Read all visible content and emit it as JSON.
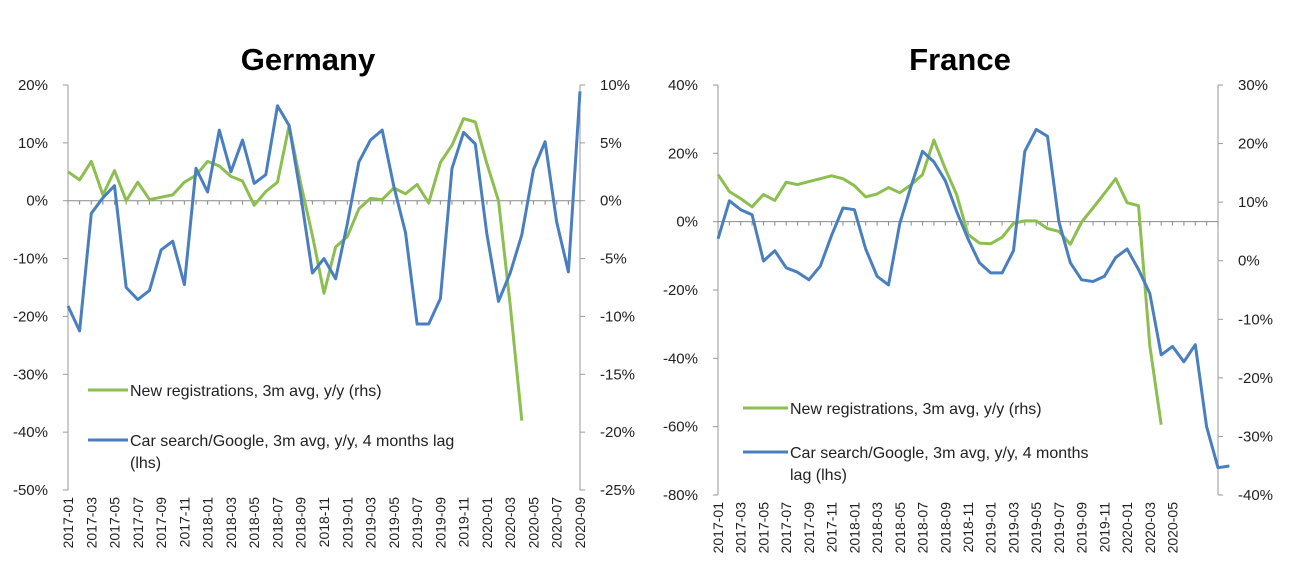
{
  "colors": {
    "green": "#8cbf4f",
    "blue": "#4a7fbf",
    "axis": "#9a9a9a",
    "zero": "#8a8a8a"
  },
  "charts": [
    {
      "title": "Germany",
      "left_ticks": [
        "20%",
        "10%",
        "0%",
        "-10%",
        "-20%",
        "-30%",
        "-40%",
        "-50%"
      ],
      "right_ticks": [
        "10%",
        "5%",
        "0%",
        "-5%",
        "-10%",
        "-15%",
        "-20%",
        "-25%"
      ],
      "legend": [
        "New registrations, 3m avg, y/y (rhs)",
        "Car search/Google, 3m avg, y/y, 4 months lag (lhs)"
      ]
    },
    {
      "title": "France",
      "left_ticks": [
        "40%",
        "20%",
        "0%",
        "-20%",
        "-40%",
        "-60%",
        "-80%"
      ],
      "right_ticks": [
        "30%",
        "20%",
        "10%",
        "0%",
        "-10%",
        "-20%",
        "-30%",
        "-40%"
      ],
      "legend": [
        "New registrations, 3m avg, y/y (rhs)",
        "Car search/Google, 3m avg, y/y, 4 months lag (lhs)"
      ]
    }
  ],
  "chart_data": [
    {
      "type": "line",
      "title": "Germany",
      "x_start": "2017-01",
      "x_end": "2020-09",
      "x_tick_labels": [
        "2017-01",
        "2017-03",
        "2017-05",
        "2017-07",
        "2017-09",
        "2017-11",
        "2018-01",
        "2018-03",
        "2018-05",
        "2018-07",
        "2018-09",
        "2018-11",
        "2019-01",
        "2019-03",
        "2019-05",
        "2019-07",
        "2019-09",
        "2019-11",
        "2020-01",
        "2020-03",
        "2020-05",
        "2020-07",
        "2020-09"
      ],
      "y_left_lim": [
        -50,
        20
      ],
      "y_right_lim": [
        -25,
        10
      ],
      "series": [
        {
          "name": "New registrations, 3m avg, y/y (rhs)",
          "axis": "right",
          "values": [
            2.5,
            1.8,
            3.4,
            0.5,
            2.6,
            0.0,
            1.6,
            0.1,
            0.3,
            0.5,
            1.6,
            2.2,
            3.4,
            3.0,
            2.1,
            1.7,
            -0.4,
            0.8,
            1.6,
            6.5,
            1.5,
            -3.0,
            -8.0,
            -4.0,
            -3.1,
            -0.7,
            0.2,
            0.1,
            1.1,
            0.6,
            1.4,
            -0.2,
            3.3,
            4.8,
            7.1,
            6.8,
            3.2,
            0.0,
            -9.0,
            -19.0
          ]
        },
        {
          "name": "Car search/Google, 3m avg, y/y, 4 months lag (lhs)",
          "axis": "left",
          "values": [
            -18.2,
            -22.5,
            -2.2,
            0.5,
            2.6,
            -15.0,
            -17.1,
            -15.5,
            -8.5,
            -7.0,
            -14.5,
            5.6,
            1.5,
            12.2,
            5.0,
            10.5,
            3.0,
            4.5,
            16.4,
            13.0,
            1.0,
            -12.5,
            -10.0,
            -13.5,
            -4.0,
            6.7,
            10.5,
            12.2,
            2.5,
            -5.5,
            -21.3,
            -21.3,
            -16.9,
            5.6,
            11.8,
            9.8,
            -5.8,
            -17.4,
            -12.5,
            -5.9,
            5.4,
            10.2,
            -3.7,
            -12.3,
            18.9
          ]
        }
      ],
      "legend_position": "bottom-left",
      "grid": false
    },
    {
      "type": "line",
      "title": "France",
      "x_start": "2017-01",
      "x_end": "2020-09",
      "x_tick_labels": [
        "2017-01",
        "2017-03",
        "2017-05",
        "2017-07",
        "2017-09",
        "2017-11",
        "2018-01",
        "2018-03",
        "2018-05",
        "2018-07",
        "2018-09",
        "2018-11",
        "2019-01",
        "2019-03",
        "2019-05",
        "2019-07",
        "2019-09",
        "2019-11",
        "2020-01",
        "2020-03",
        "2020-05"
      ],
      "y_left_lim": [
        -80,
        40
      ],
      "y_right_lim": [
        -40,
        30
      ],
      "series": [
        {
          "name": "New registrations, 3m avg, y/y (rhs)",
          "axis": "right",
          "values": [
            14.7,
            11.8,
            10.6,
            9.2,
            11.3,
            10.3,
            13.4,
            13.0,
            13.5,
            14.0,
            14.5,
            14.0,
            12.8,
            10.9,
            11.4,
            12.5,
            11.6,
            13.0,
            14.7,
            20.6,
            15.7,
            11.3,
            4.5,
            3.0,
            2.9,
            4.0,
            6.4,
            6.8,
            6.8,
            5.5,
            5.0,
            2.8,
            6.6,
            9.0,
            11.5,
            14.0,
            9.9,
            9.4,
            -14.5,
            -28.0
          ]
        },
        {
          "name": "Car search/Google, 3m avg, y/y, 4 months lag (lhs)",
          "axis": "left",
          "values": [
            -5.0,
            6.1,
            3.5,
            2.0,
            -11.5,
            -8.5,
            -13.5,
            -14.8,
            -17.0,
            -13.0,
            -4.0,
            4.0,
            3.5,
            -8.0,
            -16.0,
            -18.5,
            -0.5,
            10.5,
            20.6,
            17.5,
            12.0,
            3.0,
            -5.0,
            -12.0,
            -15.0,
            -15.0,
            -8.5,
            20.6,
            27.0,
            25.0,
            0.0,
            -12.0,
            -17.0,
            -17.5,
            -16.0,
            -10.5,
            -8.0,
            -14.0,
            -21.0,
            -39.0,
            -36.5,
            -41.0,
            -36.0,
            -60.0,
            -72.0,
            -71.5
          ]
        }
      ],
      "legend_position": "bottom-left",
      "grid": false
    }
  ]
}
